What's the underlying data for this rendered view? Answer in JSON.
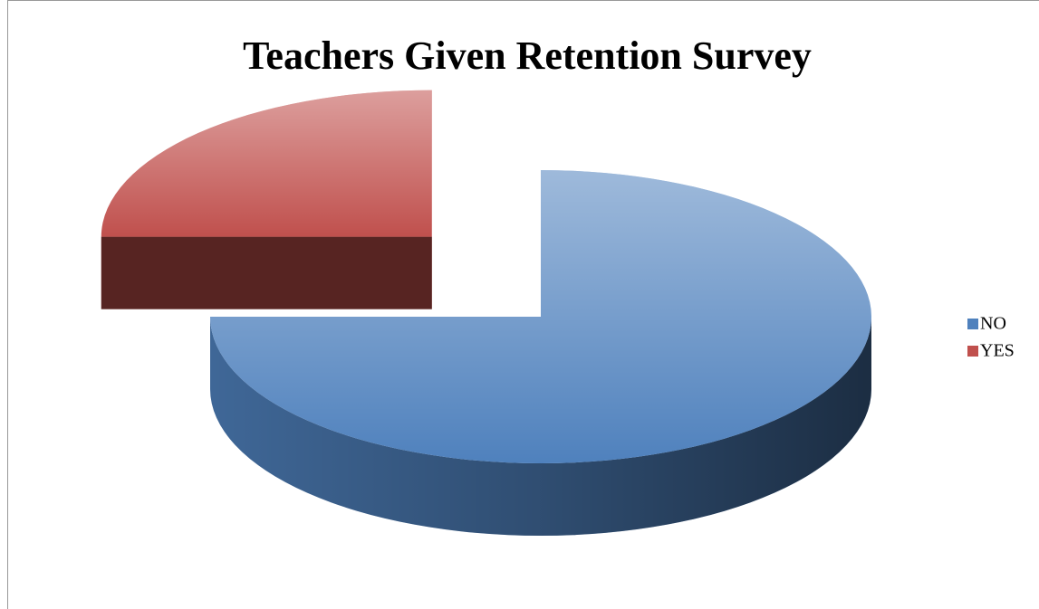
{
  "chart_data": {
    "type": "pie",
    "title": "Teachers Given Retention Survey",
    "categories": [
      "NO",
      "YES"
    ],
    "values": [
      75,
      25
    ],
    "colors": [
      "#4f81bd",
      "#c0504d"
    ],
    "exploded": [
      false,
      true
    ],
    "legend": "right"
  }
}
